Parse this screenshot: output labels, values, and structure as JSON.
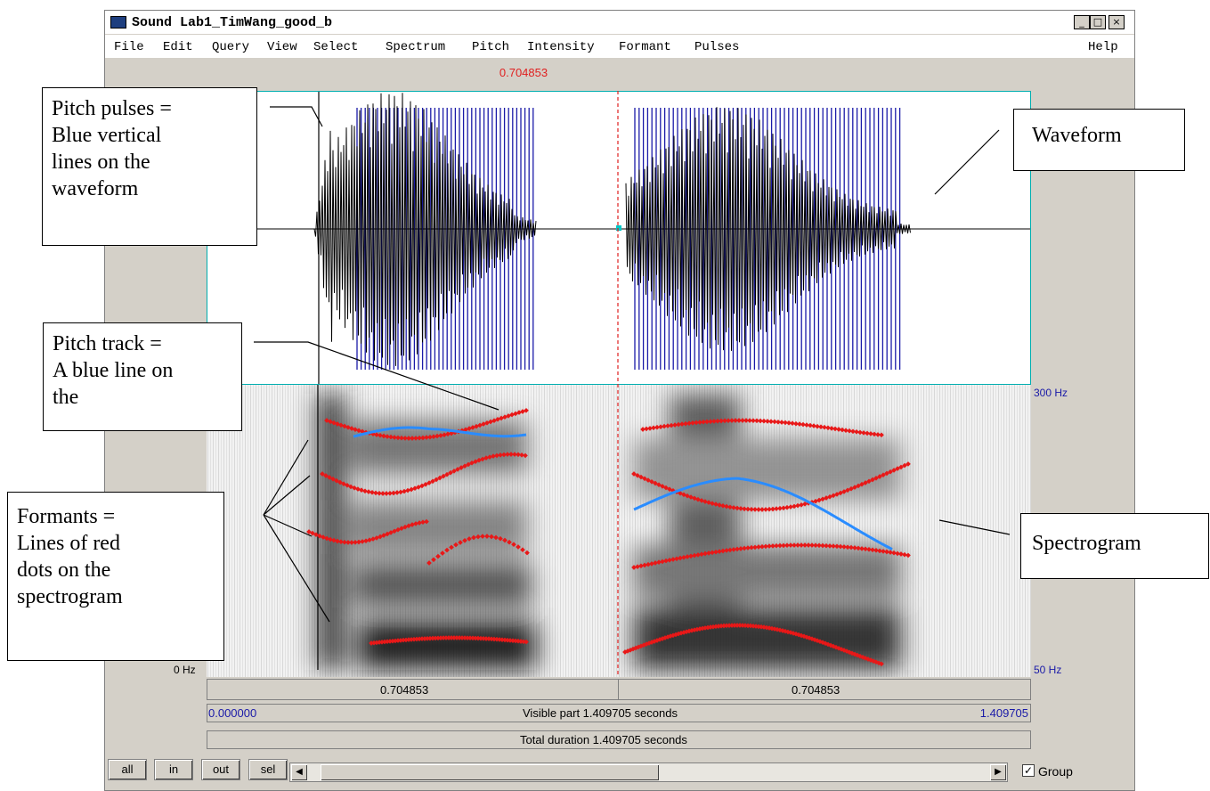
{
  "window": {
    "title": "Sound Lab1_TimWang_good_b",
    "controls": [
      "_",
      "□",
      "×"
    ]
  },
  "menu": {
    "items": [
      "File",
      "Edit",
      "Query",
      "View",
      "Select",
      "Spectrum",
      "Pitch",
      "Intensity",
      "Formant",
      "Pulses"
    ],
    "help": "Help"
  },
  "cursor_time": "0.704853",
  "spectrogram": {
    "left_min_label": "0 Hz",
    "pitch_max_label": "300 Hz",
    "pitch_min_label": "50 Hz"
  },
  "time_bars": {
    "left_segment": "0.704853",
    "right_segment": "0.704853",
    "visible_start": "0.000000",
    "visible_label": "Visible part 1.409705 seconds",
    "visible_end": "1.409705",
    "total_label": "Total duration 1.409705 seconds"
  },
  "buttons": {
    "all": "all",
    "in": "in",
    "out": "out",
    "sel": "sel"
  },
  "group": {
    "label": "Group",
    "checked": true
  },
  "colors": {
    "pulses": "#1a1aa8",
    "formants": "#e81818",
    "pitch": "#2a8cff",
    "cursor": "#e02020",
    "frame": "#00aeb0"
  },
  "annotations": {
    "pulses": [
      "Pitch pulses =",
      "Blue vertical",
      "lines on the",
      "waveform"
    ],
    "waveform": [
      "Waveform"
    ],
    "pitch_track": [
      "Pitch track =",
      "A blue line on",
      "the"
    ],
    "formants": [
      "Formants =",
      "Lines of red",
      "dots on the",
      "spectrogram"
    ],
    "spectrogram": [
      "Spectrogram"
    ]
  }
}
